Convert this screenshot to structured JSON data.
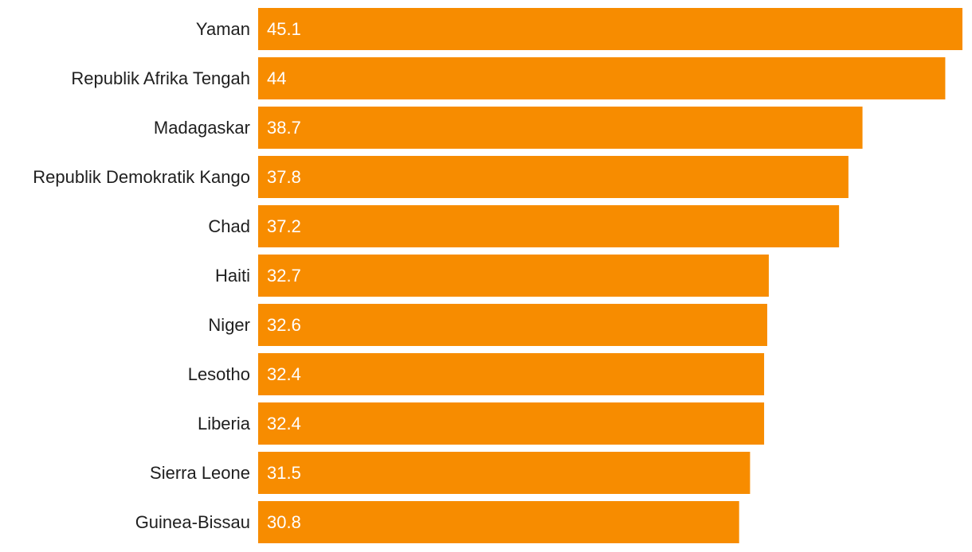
{
  "chart_data": {
    "type": "bar",
    "orientation": "horizontal",
    "categories": [
      "Yaman",
      "Republik Afrika Tengah",
      "Madagaskar",
      "Republik Demokratik Kango",
      "Chad",
      "Haiti",
      "Niger",
      "Lesotho",
      "Liberia",
      "Sierra Leone",
      "Guinea-Bissau"
    ],
    "values": [
      45.1,
      44,
      38.7,
      37.8,
      37.2,
      32.7,
      32.6,
      32.4,
      32.4,
      31.5,
      30.8
    ],
    "value_labels": [
      "45.1",
      "44",
      "38.7",
      "37.8",
      "37.2",
      "32.7",
      "32.6",
      "32.4",
      "32.4",
      "31.5",
      "30.8"
    ],
    "xlim": [
      0,
      45.1
    ],
    "bar_color": "#f78c00",
    "label_color": "#1f1f1f",
    "value_label_color": "#ffffff",
    "grid": false,
    "title": "",
    "xlabel": "",
    "ylabel": ""
  }
}
